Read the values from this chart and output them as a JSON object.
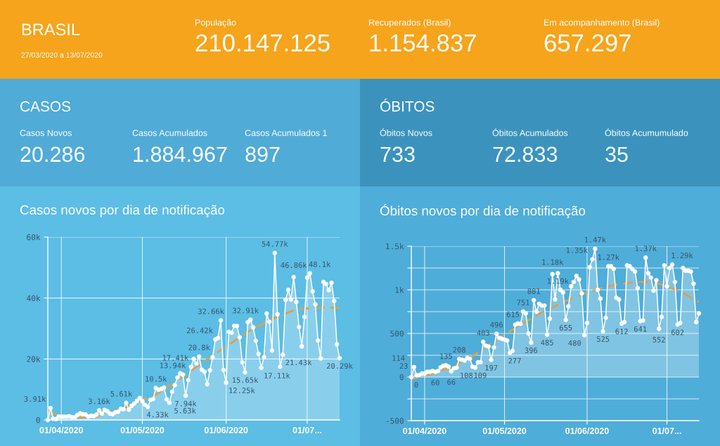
{
  "chart_data": [
    {
      "type": "other",
      "title": "BRASIL",
      "subtitle": "27/03/2020 a 13/07/2020",
      "annotations": [
        "População",
        "210.147.125",
        "Recuperados (Brasil)",
        "1.154.837",
        "Em acompanhamento (Brasil)",
        "657.297"
      ]
    },
    {
      "type": "other",
      "title": "CASOS",
      "annotations": [
        "Casos Novos",
        "20.286",
        "Casos Acumulados",
        "1.884.967",
        "Casos Acumulados 1",
        "897"
      ]
    },
    {
      "type": "other",
      "title": "ÓBITOS",
      "annotations": [
        "Óbitos Novos",
        "733",
        "Óbitos Acumulados",
        "72.833",
        "Óbitos Acumumulado",
        "35"
      ]
    },
    {
      "type": "area",
      "title": "Casos novos por dia de notificação",
      "marker": "circle",
      "grid": true,
      "x": [
        "2020-03-27",
        "2020-03-28",
        "2020-03-29",
        "2020-03-30",
        "2020-03-31",
        "2020-04-01",
        "2020-04-02",
        "2020-04-03",
        "2020-04-04",
        "2020-04-05",
        "2020-04-06",
        "2020-04-07",
        "2020-04-08",
        "2020-04-09",
        "2020-04-10",
        "2020-04-11",
        "2020-04-12",
        "2020-04-13",
        "2020-04-14",
        "2020-04-15",
        "2020-04-16",
        "2020-04-17",
        "2020-04-18",
        "2020-04-19",
        "2020-04-20",
        "2020-04-21",
        "2020-04-22",
        "2020-04-23",
        "2020-04-24",
        "2020-04-25",
        "2020-04-26",
        "2020-04-27",
        "2020-04-28",
        "2020-04-29",
        "2020-04-30",
        "2020-05-01",
        "2020-05-02",
        "2020-05-03",
        "2020-05-04",
        "2020-05-05",
        "2020-05-06",
        "2020-05-07",
        "2020-05-08",
        "2020-05-09",
        "2020-05-10",
        "2020-05-11",
        "2020-05-12",
        "2020-05-13",
        "2020-05-14",
        "2020-05-15",
        "2020-05-16",
        "2020-05-17",
        "2020-05-18",
        "2020-05-19",
        "2020-05-20",
        "2020-05-21",
        "2020-05-22",
        "2020-05-23",
        "2020-05-24",
        "2020-05-25",
        "2020-05-26",
        "2020-05-27",
        "2020-05-28",
        "2020-05-29",
        "2020-05-30",
        "2020-05-31",
        "2020-06-01",
        "2020-06-02",
        "2020-06-03",
        "2020-06-04",
        "2020-06-05",
        "2020-06-06",
        "2020-06-07",
        "2020-06-08",
        "2020-06-09",
        "2020-06-10",
        "2020-06-11",
        "2020-06-12",
        "2020-06-13",
        "2020-06-14",
        "2020-06-15",
        "2020-06-16",
        "2020-06-17",
        "2020-06-18",
        "2020-06-19",
        "2020-06-20",
        "2020-06-21",
        "2020-06-22",
        "2020-06-23",
        "2020-06-24",
        "2020-06-25",
        "2020-06-26",
        "2020-06-27",
        "2020-06-28",
        "2020-06-29",
        "2020-06-30",
        "2020-07-01",
        "2020-07-02",
        "2020-07-03",
        "2020-07-04",
        "2020-07-05",
        "2020-07-06",
        "2020-07-07",
        "2020-07-08",
        "2020-07-09",
        "2020-07-10",
        "2020-07-11",
        "2020-07-12",
        "2020-07-13"
      ],
      "xlim": [
        "2020-03-27",
        "2020-07-13"
      ],
      "xticks": [
        {
          "value": "2020-04-01",
          "label": "01/04/2020"
        },
        {
          "value": "2020-05-01",
          "label": "01/05/2020"
        },
        {
          "value": "2020-06-01",
          "label": "01/06/2020"
        },
        {
          "value": "2020-07-01",
          "label": "01/07..."
        }
      ],
      "ylim": [
        0,
        60000
      ],
      "yticks": [
        0,
        {
          "value": 20000,
          "label": "20k"
        },
        {
          "value": 40000,
          "label": "40k"
        },
        {
          "value": 60000,
          "label": "60k"
        }
      ],
      "series": [
        {
          "type": "area",
          "color": "#ffffff",
          "line_style": "solid",
          "values": [
            0,
            3910,
            400,
            300,
            1100,
            1100,
            1100,
            1100,
            1200,
            900,
            900,
            1700,
            2200,
            1900,
            1800,
            1100,
            1400,
            1300,
            1800,
            3160,
            2100,
            3300,
            2900,
            2100,
            1900,
            2500,
            2700,
            3700,
            3500,
            5610,
            3400,
            4600,
            5400,
            6300,
            7200,
            6200,
            5000,
            4330,
            6600,
            6900,
            10500,
            9900,
            10200,
            10600,
            6800,
            5630,
            9300,
            11400,
            13940,
            15300,
            14900,
            7940,
            13100,
            17410,
            20000,
            18500,
            20800,
            16500,
            15800,
            11700,
            16300,
            20600,
            26420,
            26900,
            32660,
            16400,
            12250,
            28900,
            28600,
            30900,
            30800,
            27100,
            18900,
            15650,
            32100,
            32910,
            30400,
            26000,
            21700,
            17110,
            20600,
            34900,
            32200,
            22800,
            54770,
            34700,
            17500,
            21430,
            39400,
            42700,
            39500,
            46860,
            38700,
            30500,
            24100,
            33800,
            46700,
            48100,
            42200,
            37900,
            26100,
            20200,
            45300,
            44600,
            42600,
            45000,
            39000,
            24800,
            20290
          ],
          "value_labels": [
            null,
            "3.91k",
            null,
            null,
            null,
            null,
            null,
            null,
            null,
            null,
            null,
            null,
            null,
            null,
            null,
            null,
            null,
            null,
            null,
            "3.16k",
            null,
            null,
            null,
            null,
            null,
            null,
            null,
            null,
            null,
            "5.61k",
            null,
            null,
            null,
            null,
            null,
            null,
            null,
            "4.33k",
            null,
            null,
            "10.5k",
            null,
            null,
            null,
            null,
            "5.63k",
            null,
            null,
            "13.94k",
            null,
            null,
            "7.94k",
            null,
            "17.41k",
            null,
            null,
            "20.8k",
            null,
            null,
            null,
            null,
            null,
            "26.42k",
            null,
            "32.66k",
            null,
            "12.25k",
            null,
            null,
            null,
            null,
            null,
            null,
            "15.65k",
            null,
            "32.91k",
            null,
            null,
            null,
            "17.11k",
            null,
            null,
            null,
            null,
            "54.77k",
            null,
            null,
            "21.43k",
            null,
            null,
            null,
            "46.86k",
            null,
            null,
            null,
            null,
            null,
            "48.1k",
            null,
            null,
            null,
            null,
            null,
            null,
            null,
            null,
            null,
            null,
            "20.29k"
          ]
        },
        {
          "type": "line",
          "color": "#e0a048",
          "line_style": "dashed",
          "marker": "none",
          "x": [
            "2020-03-27",
            "2020-03-30",
            "2020-04-03",
            "2020-04-08",
            "2020-04-14",
            "2020-04-19",
            "2020-04-24",
            "2020-05-01",
            "2020-05-08",
            "2020-05-15",
            "2020-05-26",
            "2020-06-09",
            "2020-06-18",
            "2020-06-27",
            "2020-07-07",
            "2020-07-13"
          ],
          "values": [
            3000,
            1900,
            900,
            700,
            1200,
            2400,
            3900,
            6400,
            9300,
            13600,
            20500,
            28900,
            33200,
            36300,
            37000,
            36700
          ]
        }
      ]
    },
    {
      "type": "area",
      "title": "Óbitos novos por dia de notificação",
      "marker": "circle",
      "grid": true,
      "x": [
        "2020-03-27",
        "2020-03-28",
        "2020-03-29",
        "2020-03-30",
        "2020-03-31",
        "2020-04-01",
        "2020-04-02",
        "2020-04-03",
        "2020-04-04",
        "2020-04-05",
        "2020-04-06",
        "2020-04-07",
        "2020-04-08",
        "2020-04-09",
        "2020-04-10",
        "2020-04-11",
        "2020-04-12",
        "2020-04-13",
        "2020-04-14",
        "2020-04-15",
        "2020-04-16",
        "2020-04-17",
        "2020-04-18",
        "2020-04-19",
        "2020-04-20",
        "2020-04-21",
        "2020-04-22",
        "2020-04-23",
        "2020-04-24",
        "2020-04-25",
        "2020-04-26",
        "2020-04-27",
        "2020-04-28",
        "2020-04-29",
        "2020-04-30",
        "2020-05-01",
        "2020-05-02",
        "2020-05-03",
        "2020-05-04",
        "2020-05-05",
        "2020-05-06",
        "2020-05-07",
        "2020-05-08",
        "2020-05-09",
        "2020-05-10",
        "2020-05-11",
        "2020-05-12",
        "2020-05-13",
        "2020-05-14",
        "2020-05-15",
        "2020-05-16",
        "2020-05-17",
        "2020-05-18",
        "2020-05-19",
        "2020-05-20",
        "2020-05-21",
        "2020-05-22",
        "2020-05-23",
        "2020-05-24",
        "2020-05-25",
        "2020-05-26",
        "2020-05-27",
        "2020-05-28",
        "2020-05-29",
        "2020-05-30",
        "2020-05-31",
        "2020-06-01",
        "2020-06-02",
        "2020-06-03",
        "2020-06-04",
        "2020-06-05",
        "2020-06-06",
        "2020-06-07",
        "2020-06-08",
        "2020-06-09",
        "2020-06-10",
        "2020-06-11",
        "2020-06-12",
        "2020-06-13",
        "2020-06-14",
        "2020-06-15",
        "2020-06-16",
        "2020-06-17",
        "2020-06-18",
        "2020-06-19",
        "2020-06-20",
        "2020-06-21",
        "2020-06-22",
        "2020-06-23",
        "2020-06-24",
        "2020-06-25",
        "2020-06-26",
        "2020-06-27",
        "2020-06-28",
        "2020-06-29",
        "2020-06-30",
        "2020-07-01",
        "2020-07-02",
        "2020-07-03",
        "2020-07-04",
        "2020-07-05",
        "2020-07-06",
        "2020-07-07",
        "2020-07-08",
        "2020-07-09",
        "2020-07-10",
        "2020-07-11",
        "2020-07-12",
        "2020-07-13"
      ],
      "xlim": [
        "2020-03-27",
        "2020-07-13"
      ],
      "xticks": [
        {
          "value": "2020-04-01",
          "label": "01/04/2020"
        },
        {
          "value": "2020-05-01",
          "label": "01/05/2020"
        },
        {
          "value": "2020-06-01",
          "label": "01/06/2020"
        },
        {
          "value": "2020-07-01",
          "label": "01/07..."
        }
      ],
      "ylim": [
        -500,
        1500
      ],
      "yticks": [
        {
          "value": -500,
          "label": "-500"
        },
        {
          "value": -250,
          "label": null
        },
        0,
        {
          "value": 250,
          "label": null
        },
        500,
        {
          "value": 750,
          "label": null
        },
        {
          "value": 1000,
          "label": "1k"
        },
        {
          "value": 1250,
          "label": null
        },
        {
          "value": 1500,
          "label": "1.5k"
        }
      ],
      "series": [
        {
          "type": "area",
          "color": "#ffffff",
          "line_style": "solid",
          "values": [
            0,
            114,
            20,
            23,
            40,
            40,
            60,
            60,
            70,
            60,
            70,
            110,
            130,
            135,
            120,
            66,
            100,
            108,
            208,
            200,
            190,
            220,
            210,
            120,
            109,
            170,
            170,
            403,
            360,
            350,
            197,
            340,
            496,
            450,
            440,
            430,
            420,
            277,
            300,
            600,
            615,
            610,
            751,
            730,
            500,
            396,
            881,
            750,
            840,
            820,
            820,
            485,
            670,
            1180,
            890,
            1190,
            1000,
            970,
            655,
            810,
            1040,
            1090,
            1160,
            1120,
            960,
            480,
            620,
            1260,
            1350,
            1470,
            1000,
            900,
            525,
            680,
            1270,
            1270,
            1240,
            910,
            890,
            612,
            630,
            1280,
            1270,
            1240,
            1210,
            1020,
            641,
            650,
            1370,
            1190,
            1140,
            990,
            1110,
            552,
            690,
            1280,
            1040,
            1250,
            1290,
            1090,
            602,
            620,
            1250,
            1220,
            1220,
            1210,
            1070,
            630,
            730
          ],
          "value_labels": [
            "0",
            "114",
            null,
            "23",
            null,
            null,
            null,
            null,
            null,
            "60",
            null,
            null,
            null,
            "135",
            null,
            "66",
            null,
            "108",
            "208",
            null,
            null,
            null,
            null,
            null,
            "109",
            null,
            null,
            "403",
            null,
            null,
            "197",
            null,
            "496",
            null,
            null,
            null,
            null,
            "277",
            null,
            null,
            "615",
            null,
            "751",
            null,
            null,
            "396",
            "881",
            null,
            null,
            null,
            null,
            "485",
            null,
            "1.18k",
            null,
            "1.19k",
            null,
            null,
            "655",
            null,
            null,
            null,
            null,
            null,
            null,
            "480",
            null,
            null,
            "1.35k",
            "1.47k",
            null,
            null,
            "525",
            null,
            "1.27k",
            null,
            null,
            null,
            null,
            "612",
            null,
            null,
            null,
            null,
            null,
            null,
            "641",
            null,
            "1.37k",
            null,
            null,
            null,
            null,
            "552",
            null,
            null,
            null,
            null,
            "1.29k",
            null,
            "602",
            null,
            null,
            null,
            null,
            null,
            null,
            null,
            null
          ]
        },
        {
          "type": "line",
          "color": "#e0a048",
          "line_style": "dashed",
          "marker": "none",
          "x": [
            "2020-03-27",
            "2020-04-02",
            "2020-04-10",
            "2020-04-19",
            "2020-04-28",
            "2020-05-07",
            "2020-05-15",
            "2020-05-23",
            "2020-06-01",
            "2020-06-10",
            "2020-06-19",
            "2020-06-26",
            "2020-07-01",
            "2020-07-06",
            "2020-07-13"
          ],
          "values": [
            -20,
            20,
            100,
            240,
            430,
            600,
            740,
            860,
            970,
            1050,
            1090,
            1090,
            1040,
            980,
            860
          ]
        }
      ]
    }
  ]
}
